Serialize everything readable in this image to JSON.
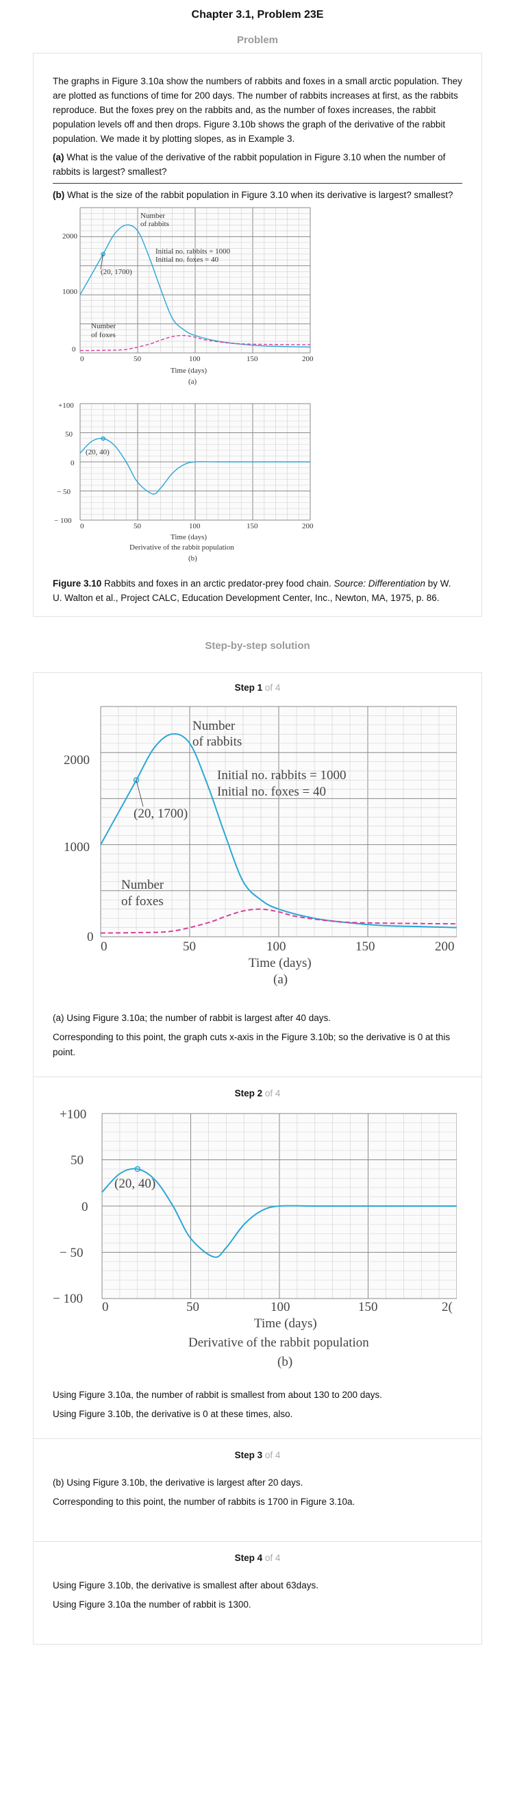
{
  "page_title": "Chapter 3.1, Problem 23E",
  "problem_heading": "Problem",
  "problem": {
    "paragraph": "The graphs in Figure 3.10a show the numbers of rabbits and foxes in a small arctic population. They are plotted as functions of time for 200 days. The number of rabbits increases at first, as the rabbits reproduce. But the foxes prey on the rabbits and, as the number of foxes increases, the rabbit population levels off and then drops. Figure 3.10b shows the graph of the derivative of the rabbit population. We made it by plotting slopes, as in Example 3.",
    "part_a_label": "(a)",
    "part_a_text": " What is the value of the derivative of the rabbit population in Figure 3.10 when the number of rabbits is largest? smallest?",
    "part_b_label": "(b)",
    "part_b_text": " What is the size of the rabbit population in Figure 3.10 when its derivative is largest? smallest?",
    "caption_bold": "Figure 3.10",
    "caption_text": " Rabbits and foxes in an arctic predator-prey food chain. ",
    "caption_italic": "Source: Differentiation",
    "caption_rest": " by W. U. Walton et al., Project CALC, Education Development Center, Inc., Newton, MA, 1975, p. 86."
  },
  "figure_a": {
    "curve_label_rabbits_1": "Number",
    "curve_label_rabbits_2": "of rabbits",
    "curve_label_foxes_1": "Number",
    "curve_label_foxes_2": "of foxes",
    "initial_rabbits": "Initial no. rabbits = 1000",
    "initial_foxes": "Initial no. foxes = 40",
    "point_label": "(20, 1700)",
    "xlabel": "Time (days)",
    "sublabel": "(a)",
    "yticks": [
      "2000",
      "1000",
      "0"
    ],
    "xticks": [
      "0",
      "50",
      "100",
      "150",
      "200"
    ]
  },
  "figure_b": {
    "point_label": "(20, 40)",
    "xlabel": "Time (days)",
    "title": "Derivative of the rabbit population",
    "sublabel": "(b)",
    "yticks": [
      "+100",
      "50",
      "0",
      "− 50",
      "− 100"
    ],
    "xticks": [
      "0",
      "50",
      "100",
      "150",
      "200"
    ],
    "xticks_cropped": [
      "0",
      "50",
      "100",
      "150",
      "2("
    ]
  },
  "solution_heading": "Step-by-step solution",
  "steps": [
    {
      "num": "Step 1",
      "of": " of 4",
      "lines": [
        "(a) Using Figure 3.10a; the number of rabbit is largest after 40 days.",
        "Corresponding to this point, the graph cuts x-axis in the Figure 3.10b; so the derivative is 0 at this point."
      ]
    },
    {
      "num": "Step 2",
      "of": " of 4",
      "lines": [
        "Using Figure 3.10a, the number of rabbit is smallest from about 130 to 200 days.",
        "Using Figure 3.10b, the derivative is 0 at these times, also."
      ]
    },
    {
      "num": "Step 3",
      "of": " of 4",
      "lines": [
        "(b) Using Figure 3.10b, the derivative is largest after 20 days.",
        "Corresponding to this point, the number of rabbits is 1700 in Figure 3.10a."
      ]
    },
    {
      "num": "Step 4",
      "of": " of 4",
      "lines": [
        "Using Figure 3.10b, the derivative is smallest after about 63days.",
        "Using Figure 3.10a the number of rabbit is 1300."
      ]
    }
  ],
  "colors": {
    "rabbit_curve": "#2aa7d6",
    "fox_curve": "#d6409b"
  },
  "chart_data": [
    {
      "type": "line",
      "xlabel": "Time (days)",
      "ylabel": "",
      "xlim": [
        0,
        200
      ],
      "ylim": [
        0,
        2500
      ],
      "series": [
        {
          "name": "Number of rabbits",
          "x": [
            0,
            10,
            20,
            30,
            40,
            50,
            60,
            70,
            80,
            90,
            100,
            120,
            140,
            160,
            180,
            200
          ],
          "y": [
            1000,
            1350,
            1700,
            2050,
            2200,
            2100,
            1650,
            1100,
            600,
            400,
            300,
            200,
            150,
            120,
            110,
            100
          ]
        },
        {
          "name": "Number of foxes",
          "x": [
            0,
            20,
            40,
            60,
            70,
            80,
            90,
            100,
            110,
            130,
            150,
            200
          ],
          "y": [
            40,
            45,
            60,
            150,
            220,
            280,
            300,
            270,
            220,
            170,
            150,
            140
          ]
        }
      ],
      "annotations": [
        "(20, 1700)"
      ]
    },
    {
      "type": "line",
      "xlabel": "Time (days)",
      "ylabel": "",
      "title": "Derivative of the rabbit population",
      "xlim": [
        0,
        200
      ],
      "ylim": [
        -100,
        100
      ],
      "series": [
        {
          "name": "",
          "x": [
            0,
            10,
            20,
            30,
            40,
            50,
            63,
            70,
            80,
            90,
            100,
            120,
            150,
            200
          ],
          "y": [
            15,
            35,
            40,
            28,
            0,
            -35,
            -55,
            -45,
            -20,
            -5,
            0,
            0,
            0,
            0
          ]
        }
      ],
      "annotations": [
        "(20, 40)"
      ]
    }
  ]
}
